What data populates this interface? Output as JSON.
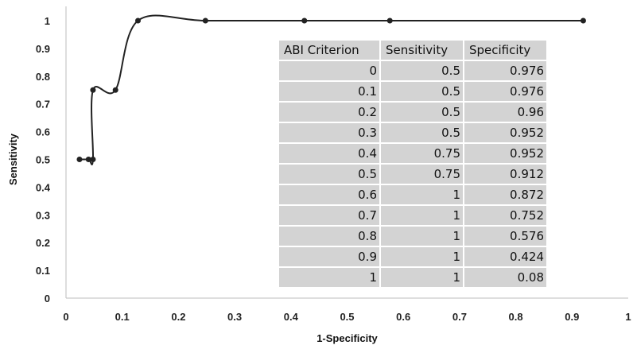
{
  "chart_data": {
    "type": "line",
    "xlabel": "1-Specificity",
    "ylabel": "Sensitivity",
    "xlim": [
      0,
      1
    ],
    "ylim": [
      0,
      1
    ],
    "x_ticks": [
      "0",
      "0.1",
      "0.2",
      "0.3",
      "0.4",
      "0.5",
      "0.6",
      "0.7",
      "0.8",
      "0.9",
      "1"
    ],
    "y_ticks": [
      "0",
      "0.1",
      "0.2",
      "0.3",
      "0.4",
      "0.5",
      "0.6",
      "0.7",
      "0.8",
      "0.9",
      "1"
    ],
    "grid": false,
    "series": [
      {
        "x": [
          0.024,
          0.04,
          0.048,
          0.048,
          0.088,
          0.128,
          0.248,
          0.424,
          0.576,
          0.92
        ],
        "y": [
          0.5,
          0.5,
          0.5,
          0.75,
          0.75,
          1,
          1,
          1,
          1,
          1
        ],
        "color": "#222222"
      }
    ],
    "table": {
      "headers": [
        "ABI Criterion",
        "Sensitivity",
        "Specificity"
      ],
      "rows": [
        [
          "0",
          "0.5",
          "0.976"
        ],
        [
          "0.1",
          "0.5",
          "0.976"
        ],
        [
          "0.2",
          "0.5",
          "0.96"
        ],
        [
          "0.3",
          "0.5",
          "0.952"
        ],
        [
          "0.4",
          "0.75",
          "0.952"
        ],
        [
          "0.5",
          "0.75",
          "0.912"
        ],
        [
          "0.6",
          "1",
          "0.872"
        ],
        [
          "0.7",
          "1",
          "0.752"
        ],
        [
          "0.8",
          "1",
          "0.576"
        ],
        [
          "0.9",
          "1",
          "0.424"
        ],
        [
          "1",
          "1",
          "0.08"
        ]
      ]
    }
  }
}
